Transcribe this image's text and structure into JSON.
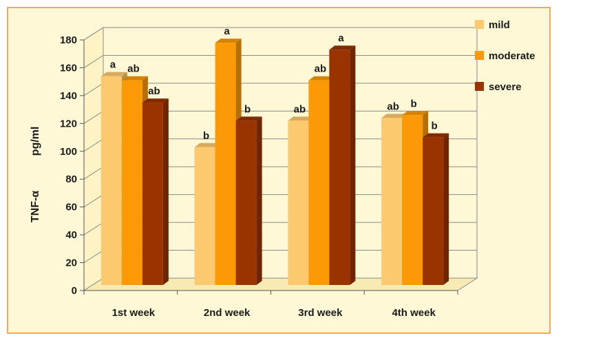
{
  "chart_data": {
    "type": "bar",
    "categories": [
      "1st week",
      "2nd week",
      "3rd week",
      "4th week"
    ],
    "series": [
      {
        "name": "mild",
        "values": [
          150,
          99,
          118,
          120
        ],
        "labels": [
          "a",
          "b",
          "ab",
          "ab"
        ],
        "color": "#fcc96e"
      },
      {
        "name": "moderate",
        "values": [
          147,
          174,
          147,
          122
        ],
        "labels": [
          "ab",
          "a",
          "ab",
          "b"
        ],
        "color": "#fb9a06"
      },
      {
        "name": "severe",
        "values": [
          131,
          118,
          169,
          106
        ],
        "labels": [
          "ab",
          "b",
          "a",
          "b"
        ],
        "color": "#993300"
      }
    ],
    "ylabel_main": "TNF-α",
    "ylabel_unit": "pg/ml",
    "ylim": [
      0,
      180
    ],
    "yticks": [
      "0",
      "20",
      "40",
      "60",
      "80",
      "100",
      "120",
      "140",
      "160",
      "180"
    ],
    "grid": true,
    "legend_position": "right"
  }
}
